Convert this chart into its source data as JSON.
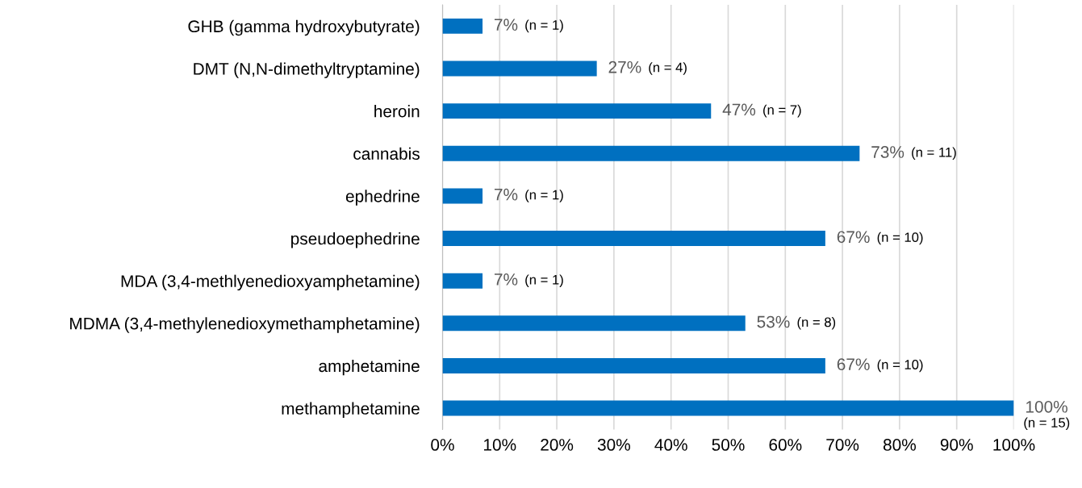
{
  "chart_data": {
    "type": "bar",
    "orientation": "horizontal",
    "categories": [
      "GHB (gamma hydroxybutyrate)",
      "DMT (N,N-dimethyltryptamine)",
      "heroin",
      "cannabis",
      "ephedrine",
      "pseudoephedrine",
      "MDA (3,4-methlyenedioxyamphetamine)",
      "MDMA (3,4-methylenedioxymethamphetamine)",
      "amphetamine",
      "methamphetamine"
    ],
    "values": [
      7,
      27,
      47,
      73,
      7,
      67,
      7,
      53,
      67,
      100
    ],
    "value_labels": [
      "7%",
      "27%",
      "47%",
      "73%",
      "7%",
      "67%",
      "7%",
      "53%",
      "67%",
      "100%"
    ],
    "color": "#0070c0",
    "xlim": [
      0,
      100
    ],
    "xticks": [
      {
        "value": 0,
        "label": "0%"
      },
      {
        "value": 10,
        "label": "10%"
      },
      {
        "value": 20,
        "label": "20%"
      },
      {
        "value": 30,
        "label": "30%"
      },
      {
        "value": 40,
        "label": "40%"
      },
      {
        "value": 50,
        "label": "50%"
      },
      {
        "value": 60,
        "label": "60%"
      },
      {
        "value": 70,
        "label": "70%"
      },
      {
        "value": 80,
        "label": "80%"
      },
      {
        "value": 90,
        "label": "90%"
      },
      {
        "value": 100,
        "label": "100%"
      }
    ],
    "grid": "x",
    "annotations": [
      "(n = 1)",
      "(n = 4)",
      "(n = 7)",
      "(n = 11)",
      "(n = 1)",
      "(n = 10)",
      "(n = 1)",
      "(n = 8)",
      "(n = 10)",
      "(n = 15)"
    ]
  }
}
